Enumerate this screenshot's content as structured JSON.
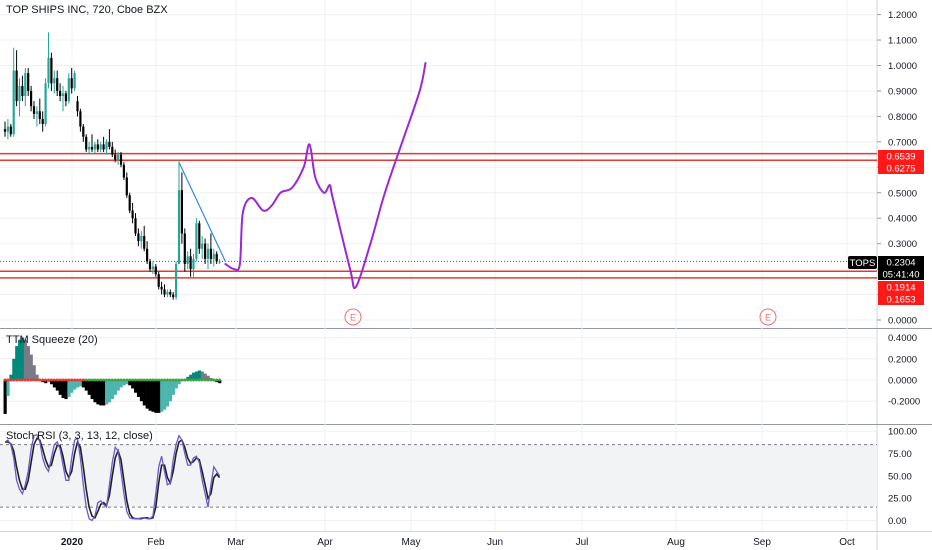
{
  "header": {
    "symbol_title": "TOP SHIPS INC, 720, Cboe BZX"
  },
  "colors": {
    "up": "#26a69a",
    "down": "#000000",
    "level_line": "#e53935",
    "trendline": "#2f8ae0",
    "drawing": "#9c27d8",
    "grid": "#eef0f3",
    "axis_text": "#131722",
    "tag_dark": "#000000"
  },
  "price_axis": {
    "ticks": [
      "1.2000",
      "1.1000",
      "1.0000",
      "0.9000",
      "0.8000",
      "0.7000",
      "0.6000",
      "0.5000",
      "0.4000",
      "0.3000",
      "0.2000",
      "0.1000",
      "0.0000"
    ]
  },
  "price_tags": [
    {
      "label": "0.6539",
      "value": 0.6539,
      "style": "red"
    },
    {
      "label": "0.6275",
      "value": 0.6275,
      "style": "red"
    },
    {
      "label": "0.2304",
      "value": 0.2304,
      "style": "dark"
    },
    {
      "label": "05:41:40",
      "value": 0.196,
      "style": "dark"
    },
    {
      "label": "0.1914",
      "value": 0.1914,
      "style": "red"
    },
    {
      "label": "0.1653",
      "value": 0.1653,
      "style": "red"
    }
  ],
  "ticker_tag": "TOPS",
  "earnings_marker": "E",
  "ttm": {
    "title": "TTM Squeeze (20)",
    "ticks": [
      "0.4000",
      "0.2000",
      "0.0000",
      "-0.2000"
    ]
  },
  "stoch": {
    "title": "Stoch RSI (3, 3, 13, 12, close)",
    "ticks": [
      "100.00",
      "75.00",
      "50.00",
      "25.00",
      "0.00"
    ],
    "upper_band": 85,
    "lower_band": 15
  },
  "time_axis": {
    "labels": [
      "2020",
      "Feb",
      "Mar",
      "Apr",
      "May",
      "Jun",
      "Jul",
      "Aug",
      "Sep",
      "Oct"
    ]
  },
  "chart_data": {
    "type": "candlestick",
    "title": "TOP SHIPS INC, 720, Cboe BZX",
    "ylim": [
      0,
      1.2
    ],
    "horizontal_levels": [
      0.6539,
      0.6275,
      0.1914,
      0.1653
    ],
    "last_price": 0.2304,
    "candles": [
      {
        "o": 0.75,
        "h": 0.78,
        "l": 0.72,
        "c": 0.74
      },
      {
        "o": 0.74,
        "h": 0.79,
        "l": 0.71,
        "c": 0.76
      },
      {
        "o": 0.76,
        "h": 0.77,
        "l": 0.72,
        "c": 0.73
      },
      {
        "o": 0.73,
        "h": 1.07,
        "l": 0.72,
        "c": 0.98
      },
      {
        "o": 0.98,
        "h": 1.06,
        "l": 0.84,
        "c": 0.86
      },
      {
        "o": 0.86,
        "h": 0.95,
        "l": 0.8,
        "c": 0.92
      },
      {
        "o": 0.92,
        "h": 0.96,
        "l": 0.86,
        "c": 0.88
      },
      {
        "o": 0.88,
        "h": 0.99,
        "l": 0.84,
        "c": 0.97
      },
      {
        "o": 0.97,
        "h": 0.99,
        "l": 0.88,
        "c": 0.9
      },
      {
        "o": 0.9,
        "h": 0.92,
        "l": 0.82,
        "c": 0.84
      },
      {
        "o": 0.84,
        "h": 0.86,
        "l": 0.79,
        "c": 0.81
      },
      {
        "o": 0.81,
        "h": 0.84,
        "l": 0.76,
        "c": 0.82
      },
      {
        "o": 0.82,
        "h": 0.87,
        "l": 0.77,
        "c": 0.79
      },
      {
        "o": 0.79,
        "h": 0.82,
        "l": 0.74,
        "c": 0.77
      },
      {
        "o": 0.77,
        "h": 0.95,
        "l": 0.76,
        "c": 0.93
      },
      {
        "o": 0.93,
        "h": 1.13,
        "l": 0.91,
        "c": 1.03
      },
      {
        "o": 1.03,
        "h": 1.05,
        "l": 0.9,
        "c": 0.93
      },
      {
        "o": 0.93,
        "h": 0.98,
        "l": 0.89,
        "c": 0.95
      },
      {
        "o": 0.95,
        "h": 0.98,
        "l": 0.88,
        "c": 0.9
      },
      {
        "o": 0.9,
        "h": 0.93,
        "l": 0.86,
        "c": 0.88
      },
      {
        "o": 0.88,
        "h": 0.92,
        "l": 0.82,
        "c": 0.89
      },
      {
        "o": 0.89,
        "h": 0.9,
        "l": 0.84,
        "c": 0.86
      },
      {
        "o": 0.86,
        "h": 0.97,
        "l": 0.85,
        "c": 0.95
      },
      {
        "o": 0.95,
        "h": 0.99,
        "l": 0.89,
        "c": 0.91
      },
      {
        "o": 0.91,
        "h": 0.98,
        "l": 0.9,
        "c": 0.97
      },
      {
        "o": 0.86,
        "h": 0.88,
        "l": 0.8,
        "c": 0.82
      },
      {
        "o": 0.82,
        "h": 0.83,
        "l": 0.74,
        "c": 0.76
      },
      {
        "o": 0.76,
        "h": 0.77,
        "l": 0.7,
        "c": 0.72
      },
      {
        "o": 0.72,
        "h": 0.73,
        "l": 0.66,
        "c": 0.67
      },
      {
        "o": 0.67,
        "h": 0.7,
        "l": 0.65,
        "c": 0.68
      },
      {
        "o": 0.68,
        "h": 0.73,
        "l": 0.66,
        "c": 0.67
      },
      {
        "o": 0.67,
        "h": 0.7,
        "l": 0.65,
        "c": 0.69
      },
      {
        "o": 0.69,
        "h": 0.71,
        "l": 0.66,
        "c": 0.67
      },
      {
        "o": 0.67,
        "h": 0.7,
        "l": 0.66,
        "c": 0.69
      },
      {
        "o": 0.69,
        "h": 0.72,
        "l": 0.66,
        "c": 0.67
      },
      {
        "o": 0.67,
        "h": 0.71,
        "l": 0.65,
        "c": 0.7
      },
      {
        "o": 0.7,
        "h": 0.75,
        "l": 0.67,
        "c": 0.68
      },
      {
        "o": 0.68,
        "h": 0.7,
        "l": 0.64,
        "c": 0.65
      },
      {
        "o": 0.65,
        "h": 0.67,
        "l": 0.62,
        "c": 0.63
      },
      {
        "o": 0.63,
        "h": 0.66,
        "l": 0.61,
        "c": 0.65
      },
      {
        "o": 0.65,
        "h": 0.66,
        "l": 0.6,
        "c": 0.61
      },
      {
        "o": 0.61,
        "h": 0.62,
        "l": 0.55,
        "c": 0.56
      },
      {
        "o": 0.56,
        "h": 0.58,
        "l": 0.48,
        "c": 0.49
      },
      {
        "o": 0.49,
        "h": 0.5,
        "l": 0.42,
        "c": 0.43
      },
      {
        "o": 0.43,
        "h": 0.46,
        "l": 0.38,
        "c": 0.4
      },
      {
        "o": 0.4,
        "h": 0.42,
        "l": 0.33,
        "c": 0.34
      },
      {
        "o": 0.34,
        "h": 0.36,
        "l": 0.29,
        "c": 0.31
      },
      {
        "o": 0.31,
        "h": 0.35,
        "l": 0.28,
        "c": 0.33
      },
      {
        "o": 0.33,
        "h": 0.37,
        "l": 0.27,
        "c": 0.28
      },
      {
        "o": 0.28,
        "h": 0.31,
        "l": 0.22,
        "c": 0.23
      },
      {
        "o": 0.23,
        "h": 0.24,
        "l": 0.19,
        "c": 0.2
      },
      {
        "o": 0.2,
        "h": 0.23,
        "l": 0.18,
        "c": 0.21
      },
      {
        "o": 0.21,
        "h": 0.22,
        "l": 0.17,
        "c": 0.18
      },
      {
        "o": 0.18,
        "h": 0.19,
        "l": 0.12,
        "c": 0.13
      },
      {
        "o": 0.13,
        "h": 0.15,
        "l": 0.1,
        "c": 0.12
      },
      {
        "o": 0.12,
        "h": 0.14,
        "l": 0.09,
        "c": 0.1
      },
      {
        "o": 0.1,
        "h": 0.12,
        "l": 0.09,
        "c": 0.11
      },
      {
        "o": 0.11,
        "h": 0.12,
        "l": 0.09,
        "c": 0.1
      },
      {
        "o": 0.1,
        "h": 0.11,
        "l": 0.08,
        "c": 0.09
      },
      {
        "o": 0.09,
        "h": 0.23,
        "l": 0.08,
        "c": 0.22
      },
      {
        "o": 0.22,
        "h": 0.63,
        "l": 0.22,
        "c": 0.51
      },
      {
        "o": 0.51,
        "h": 0.58,
        "l": 0.3,
        "c": 0.34
      },
      {
        "o": 0.34,
        "h": 0.36,
        "l": 0.19,
        "c": 0.22
      },
      {
        "o": 0.22,
        "h": 0.27,
        "l": 0.2,
        "c": 0.25
      },
      {
        "o": 0.25,
        "h": 0.28,
        "l": 0.17,
        "c": 0.2
      },
      {
        "o": 0.2,
        "h": 0.26,
        "l": 0.17,
        "c": 0.24
      },
      {
        "o": 0.24,
        "h": 0.4,
        "l": 0.23,
        "c": 0.38
      },
      {
        "o": 0.38,
        "h": 0.39,
        "l": 0.26,
        "c": 0.28
      },
      {
        "o": 0.28,
        "h": 0.33,
        "l": 0.24,
        "c": 0.3
      },
      {
        "o": 0.3,
        "h": 0.32,
        "l": 0.22,
        "c": 0.24
      },
      {
        "o": 0.24,
        "h": 0.3,
        "l": 0.2,
        "c": 0.28
      },
      {
        "o": 0.28,
        "h": 0.34,
        "l": 0.22,
        "c": 0.24
      },
      {
        "o": 0.24,
        "h": 0.28,
        "l": 0.21,
        "c": 0.26
      },
      {
        "o": 0.26,
        "h": 0.27,
        "l": 0.22,
        "c": 0.23
      },
      {
        "o": 0.23,
        "h": 0.24,
        "l": 0.22,
        "c": 0.23
      }
    ],
    "trendline": [
      {
        "t": 60,
        "p": 0.62
      },
      {
        "t": 76,
        "p": 0.23
      }
    ],
    "drawn_projection": [
      {
        "t": 76,
        "p": 0.22
      },
      {
        "t": 79,
        "p": 0.2
      },
      {
        "t": 81,
        "p": 0.22
      },
      {
        "t": 82,
        "p": 0.42
      },
      {
        "t": 85,
        "p": 0.48
      },
      {
        "t": 89,
        "p": 0.43
      },
      {
        "t": 92,
        "p": 0.45
      },
      {
        "t": 95,
        "p": 0.5
      },
      {
        "t": 99,
        "p": 0.52
      },
      {
        "t": 103,
        "p": 0.6
      },
      {
        "t": 105,
        "p": 0.69
      },
      {
        "t": 107,
        "p": 0.56
      },
      {
        "t": 110,
        "p": 0.5
      },
      {
        "t": 112,
        "p": 0.53
      },
      {
        "t": 113,
        "p": 0.48
      },
      {
        "t": 119,
        "p": 0.2
      },
      {
        "t": 121,
        "p": 0.13
      },
      {
        "t": 126,
        "p": 0.3
      },
      {
        "t": 131,
        "p": 0.5
      },
      {
        "t": 137,
        "p": 0.7
      },
      {
        "t": 143,
        "p": 0.9
      },
      {
        "t": 145,
        "p": 1.01
      }
    ],
    "ttm_histogram": [
      -0.32,
      -0.15,
      0.05,
      0.2,
      0.32,
      0.38,
      0.4,
      0.38,
      0.32,
      0.24,
      0.14,
      0.05,
      0.0,
      -0.02,
      -0.03,
      -0.02,
      -0.04,
      -0.07,
      -0.1,
      -0.14,
      -0.17,
      -0.18,
      -0.16,
      -0.12,
      -0.09,
      -0.07,
      -0.06,
      -0.07,
      -0.1,
      -0.14,
      -0.18,
      -0.21,
      -0.23,
      -0.24,
      -0.24,
      -0.23,
      -0.21,
      -0.18,
      -0.14,
      -0.1,
      -0.07,
      -0.05,
      -0.04,
      -0.05,
      -0.08,
      -0.12,
      -0.16,
      -0.2,
      -0.24,
      -0.27,
      -0.29,
      -0.3,
      -0.31,
      -0.31,
      -0.3,
      -0.28,
      -0.25,
      -0.2,
      -0.14,
      -0.08,
      -0.04,
      -0.01,
      0.01,
      0.03,
      0.05,
      0.07,
      0.08,
      0.09,
      0.08,
      0.06,
      0.04,
      0.02,
      0.0,
      -0.02,
      -0.03
    ],
    "stoch_k": [
      88,
      90,
      85,
      70,
      45,
      35,
      30,
      40,
      55,
      80,
      95,
      96,
      88,
      70,
      60,
      55,
      70,
      85,
      88,
      80,
      62,
      45,
      45,
      70,
      90,
      92,
      70,
      40,
      15,
      2,
      0,
      5,
      20,
      22,
      18,
      15,
      40,
      65,
      82,
      78,
      55,
      30,
      10,
      3,
      2,
      2,
      2,
      3,
      3,
      2,
      2,
      5,
      30,
      60,
      72,
      55,
      40,
      42,
      68,
      85,
      95,
      90,
      75,
      62,
      62,
      70,
      72,
      65,
      45,
      30,
      15,
      40,
      60,
      55,
      50
    ],
    "stoch_d": [
      88,
      88,
      86,
      78,
      60,
      45,
      35,
      35,
      45,
      65,
      85,
      92,
      90,
      80,
      68,
      60,
      62,
      75,
      84,
      84,
      72,
      55,
      48,
      55,
      75,
      88,
      82,
      60,
      35,
      15,
      5,
      3,
      10,
      18,
      20,
      17,
      28,
      50,
      70,
      78,
      68,
      45,
      22,
      8,
      3,
      2,
      2,
      2,
      3,
      3,
      2,
      3,
      15,
      42,
      62,
      62,
      48,
      42,
      55,
      75,
      88,
      90,
      82,
      70,
      64,
      66,
      70,
      68,
      55,
      40,
      25,
      30,
      48,
      52,
      48
    ]
  }
}
